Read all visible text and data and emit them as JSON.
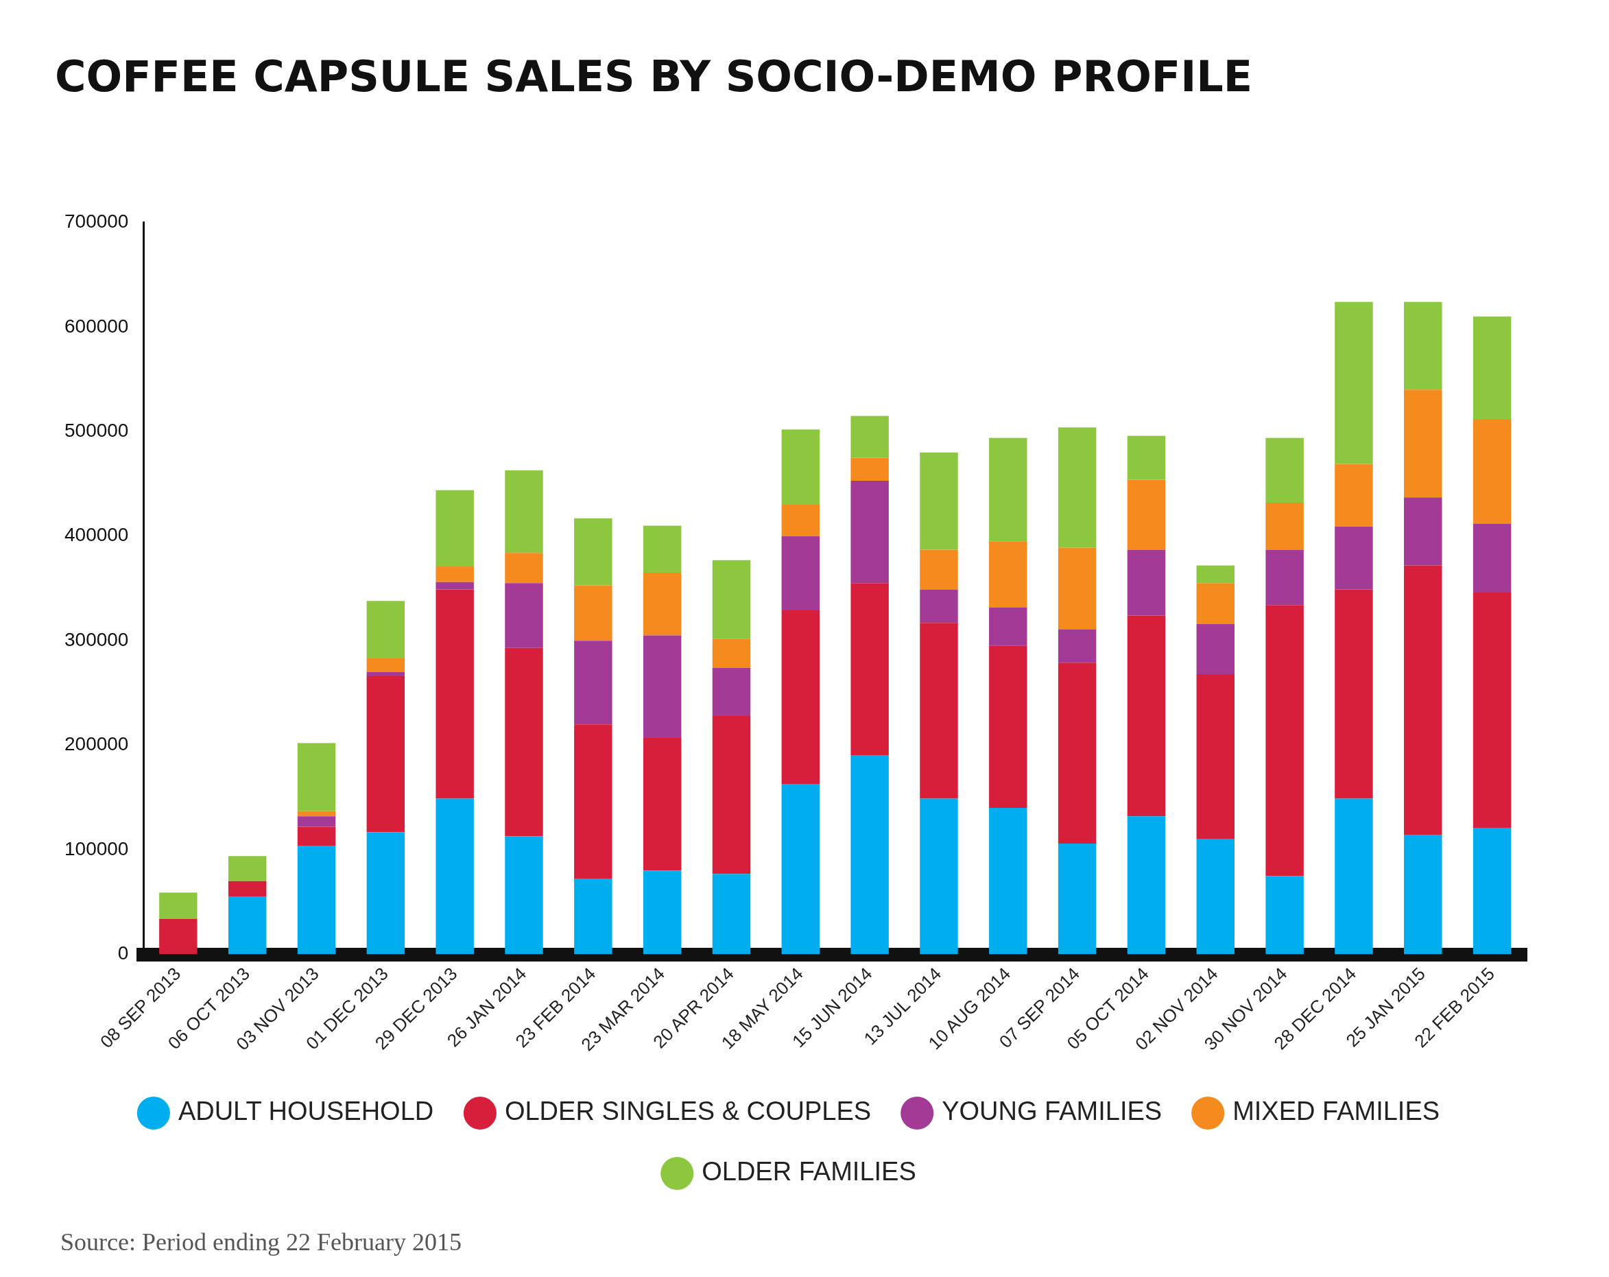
{
  "chart_data": {
    "type": "bar",
    "stacked": true,
    "title": "COFFEE CAPSULE SALES BY SOCIO-DEMO PROFILE",
    "categories": [
      "08 SEP 2013",
      "06 OCT 2013",
      "03 NOV 2013",
      "01 DEC 2013",
      "29 DEC 2013",
      "26 JAN 2014",
      "23 FEB 2014",
      "23 MAR 2014",
      "20 APR 2014",
      "18 MAY 2014",
      "15 JUN 2014",
      "13 JUL 2014",
      "10 AUG 2014",
      "07 SEP 2014",
      "05 OCT 2014",
      "02 NOV 2014",
      "30 NOV 2014",
      "28 DEC 2014",
      "25 JAN 2015",
      "22 FEB 2015"
    ],
    "series": [
      {
        "name": "ADULT HOUSEHOLD",
        "color": "#00aeef",
        "values": [
          0,
          55000,
          104000,
          117000,
          149000,
          113000,
          72000,
          80000,
          77000,
          163000,
          190000,
          149000,
          140000,
          106000,
          132000,
          110000,
          75000,
          149000,
          114000,
          121000
        ]
      },
      {
        "name": "OLDER SINGLES & COUPLES",
        "color": "#d71f3c",
        "values": [
          34000,
          15000,
          18000,
          149000,
          200000,
          180000,
          148000,
          127000,
          151000,
          166000,
          165000,
          168000,
          155000,
          173000,
          192000,
          158000,
          259000,
          200000,
          258000,
          225000
        ]
      },
      {
        "name": "YOUNG FAMILIES",
        "color": "#a23a96",
        "values": [
          0,
          0,
          10000,
          4000,
          7000,
          62000,
          80000,
          98000,
          46000,
          71000,
          98000,
          32000,
          37000,
          32000,
          63000,
          48000,
          53000,
          60000,
          65000,
          66000
        ]
      },
      {
        "name": "MIXED FAMILIES",
        "color": "#f58a1f",
        "values": [
          0,
          0,
          5000,
          13000,
          15000,
          29000,
          53000,
          60000,
          28000,
          30000,
          22000,
          38000,
          63000,
          78000,
          67000,
          39000,
          45000,
          60000,
          103000,
          100000
        ]
      },
      {
        "name": "OLDER FAMILIES",
        "color": "#8dc63f",
        "values": [
          25000,
          24000,
          65000,
          55000,
          73000,
          79000,
          64000,
          45000,
          75000,
          72000,
          40000,
          93000,
          99000,
          115000,
          42000,
          17000,
          62000,
          155000,
          84000,
          98000
        ]
      }
    ],
    "ylim": [
      0,
      700000
    ],
    "yticks": [
      0,
      100000,
      200000,
      300000,
      400000,
      500000,
      600000,
      700000
    ],
    "grid": false,
    "legend": "bottom",
    "marker": "circle",
    "annotations": [
      "Source: Period ending 22 February 2015"
    ]
  }
}
